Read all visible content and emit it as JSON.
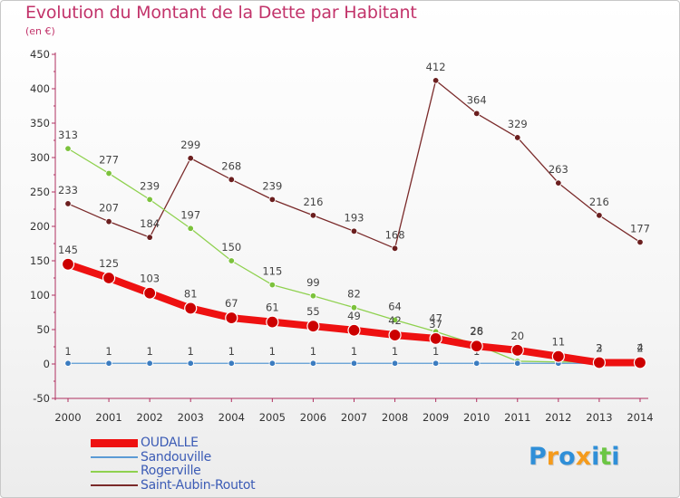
{
  "title": "Evolution du Montant de la Dette par Habitant",
  "unit": "(en €)",
  "brand": "Proxiti",
  "colors": {
    "axis": "#b03060",
    "title": "#c2336a",
    "legend_text": "#3b5bb5",
    "brand_letters": [
      "#2f8fd8",
      "#f59b1c",
      "#2f8fd8",
      "#f59b1c",
      "#2f8fd8",
      "#6cc644",
      "#2f8fd8"
    ]
  },
  "chart_data": {
    "type": "line",
    "title": "Evolution du Montant de la Dette par Habitant",
    "ylabel": "(en €)",
    "xlabel": "",
    "x": [
      "2000",
      "2001",
      "2002",
      "2003",
      "2004",
      "2005",
      "2006",
      "2007",
      "2008",
      "2009",
      "2010",
      "2011",
      "2012",
      "2013",
      "2014"
    ],
    "ylim": [
      -50,
      450
    ],
    "yticks": [
      -50,
      0,
      50,
      100,
      150,
      200,
      250,
      300,
      350,
      400,
      450
    ],
    "grid": false,
    "legend_position": "bottom-left",
    "series": [
      {
        "name": "Saint-Aubin-Routot",
        "color": "#7a2a2a",
        "values": [
          233,
          207,
          184,
          299,
          268,
          239,
          216,
          193,
          168,
          412,
          364,
          329,
          263,
          216,
          177
        ],
        "labels": [
          "233",
          "207",
          "184",
          "299",
          "268",
          "239",
          "216",
          "193",
          "168",
          "412",
          "364",
          "329",
          "263",
          "216",
          "177"
        ]
      },
      {
        "name": "Rogerville",
        "color": "#8fd14f",
        "values": [
          313,
          277,
          239,
          197,
          150,
          115,
          99,
          82,
          64,
          47,
          28,
          4,
          3,
          3,
          4
        ],
        "labels": [
          "313",
          "277",
          "239",
          "197",
          "150",
          "115",
          "99",
          "82",
          "64",
          "47",
          "28",
          "",
          "",
          "3",
          "4"
        ]
      },
      {
        "name": "Sandouville",
        "color": "#5b9bd5",
        "values": [
          1,
          1,
          1,
          1,
          1,
          1,
          1,
          1,
          1,
          1,
          1,
          1,
          1,
          1,
          1
        ],
        "labels": [
          "1",
          "1",
          "1",
          "1",
          "1",
          "1",
          "1",
          "1",
          "1",
          "1",
          "1",
          "",
          "",
          "",
          ""
        ]
      },
      {
        "name": "OUDALLE",
        "color": "#ee1111",
        "values": [
          145,
          125,
          103,
          81,
          67,
          61,
          55,
          49,
          42,
          37,
          26,
          20,
          11,
          2,
          2
        ],
        "labels": [
          "145",
          "125",
          "103",
          "81",
          "67",
          "61",
          "55",
          "49",
          "42",
          "37",
          "26",
          "20",
          "11",
          "2",
          "2"
        ]
      }
    ],
    "legend_order": [
      "OUDALLE",
      "Sandouville",
      "Rogerville",
      "Saint-Aubin-Routot"
    ]
  }
}
